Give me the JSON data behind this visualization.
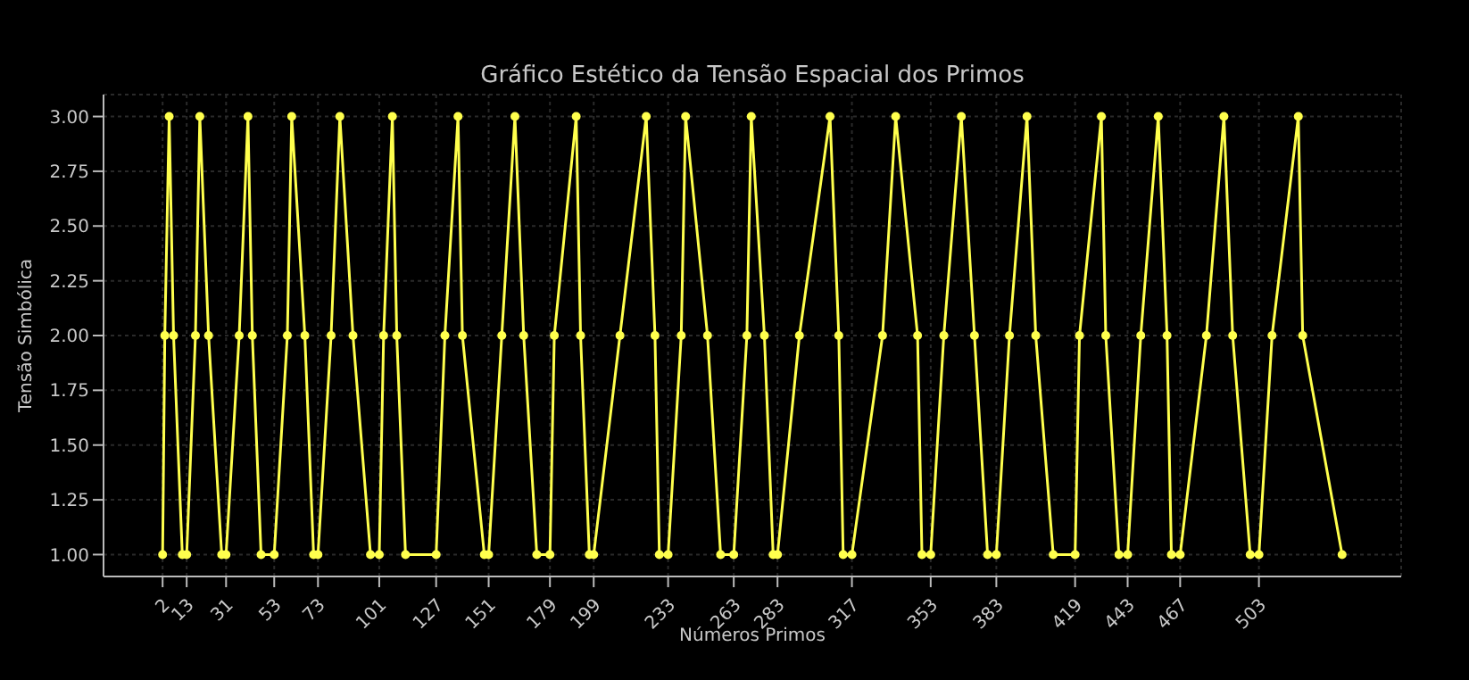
{
  "chart_data": {
    "type": "line",
    "title": "Gráfico Estético da Tensão Espacial dos Primos",
    "xlabel": "Números Primos",
    "ylabel": "Tensão Simbólica",
    "x": [
      2,
      3,
      5,
      7,
      11,
      13,
      17,
      19,
      23,
      29,
      31,
      37,
      41,
      43,
      47,
      53,
      59,
      61,
      67,
      71,
      73,
      79,
      83,
      89,
      97,
      101,
      103,
      107,
      109,
      113,
      127,
      131,
      137,
      139,
      149,
      151,
      157,
      163,
      167,
      173,
      179,
      181,
      191,
      193,
      197,
      199,
      211,
      223,
      227,
      229,
      233,
      239,
      241,
      251,
      257,
      263,
      269,
      271,
      277,
      281,
      283,
      293,
      307,
      311,
      313,
      317,
      331,
      337,
      347,
      349,
      353,
      359,
      367,
      373,
      379,
      383,
      389,
      397,
      401,
      409,
      419,
      421,
      431,
      433,
      439,
      443,
      449,
      457,
      461,
      463,
      467,
      479,
      487,
      491,
      499,
      503,
      509,
      521,
      523,
      541
    ],
    "series": [
      {
        "color": "#ffff4d",
        "values": [
          1,
          2,
          3,
          2,
          1,
          1,
          2,
          3,
          2,
          1,
          1,
          2,
          3,
          2,
          1,
          1,
          2,
          3,
          2,
          1,
          1,
          2,
          3,
          2,
          1,
          1,
          2,
          3,
          2,
          1,
          1,
          2,
          3,
          2,
          1,
          1,
          2,
          3,
          2,
          1,
          1,
          2,
          3,
          2,
          1,
          1,
          2,
          3,
          2,
          1,
          1,
          2,
          3,
          2,
          1,
          1,
          2,
          3,
          2,
          1,
          1,
          2,
          3,
          2,
          1,
          1,
          2,
          3,
          2,
          1,
          1,
          2,
          3,
          2,
          1,
          1,
          2,
          3,
          2,
          1,
          1,
          2,
          3,
          2,
          1,
          1,
          2,
          3,
          2,
          1,
          1,
          2,
          3,
          2,
          1,
          1,
          2,
          3,
          2,
          1
        ]
      }
    ],
    "xlim": [
      -25,
      568
    ],
    "xticks": [
      2,
      13,
      31,
      53,
      73,
      101,
      127,
      151,
      179,
      199,
      233,
      263,
      283,
      317,
      353,
      383,
      419,
      443,
      467,
      503
    ],
    "ylim": [
      0.9,
      3.1
    ],
    "yticks": [
      {
        "value": 1,
        "label": "1.00"
      },
      {
        "value": 1.25,
        "label": "1.25"
      },
      {
        "value": 1.5,
        "label": "1.50"
      },
      {
        "value": 1.75,
        "label": "1.75"
      },
      {
        "value": 2,
        "label": "2.00"
      },
      {
        "value": 2.25,
        "label": "2.25"
      },
      {
        "value": 2.5,
        "label": "2.50"
      },
      {
        "value": 2.75,
        "label": "2.75"
      },
      {
        "value": 3,
        "label": "3.00"
      }
    ],
    "grid": true,
    "marker": "circle",
    "line_style": "solid"
  }
}
